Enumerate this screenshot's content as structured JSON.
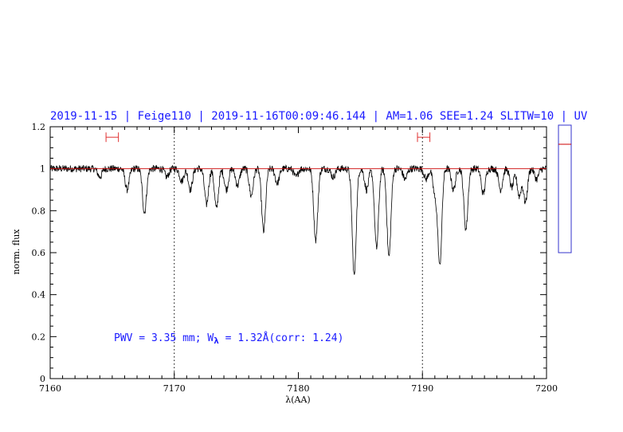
{
  "chart_data": {
    "type": "line",
    "title": "2019-11-15 | Feige110 | 2019-11-16T00:09:46.144 | AM=1.06  SEE=1.24  SLITW=10 | UV",
    "xlabel": "λ(AA)",
    "ylabel": "norm. flux",
    "xlim": [
      7160,
      7200
    ],
    "ylim": [
      0,
      1.2
    ],
    "x_ticks": [
      7160,
      7170,
      7180,
      7190,
      7200
    ],
    "x_tick_labels": [
      "7160",
      "7170",
      "7180",
      "7190",
      "7200"
    ],
    "y_ticks": [
      0,
      0.2,
      0.4,
      0.6,
      0.8,
      1,
      1.2
    ],
    "y_tick_labels": [
      "0",
      "0.2",
      "0.4",
      "0.6",
      "0.8",
      "1",
      "1.2"
    ],
    "continuum_level": 1.0,
    "continuum_color": "#cc0000",
    "spectrum_color": "#000000",
    "reference_lines_x": [
      7170,
      7190
    ],
    "continuum_windows": [
      [
        7164.5,
        7165.5
      ],
      [
        7189.6,
        7190.6
      ]
    ],
    "window_y": 1.15,
    "annotation": {
      "pwv_text": "PWV  =  3.35  mm;  W",
      "subscript": "λ",
      "rest_text": "  =  1.32Å(corr: 1.24)"
    },
    "absorption_lines": [
      {
        "x": 7164.0,
        "depth": 0.04
      },
      {
        "x": 7166.2,
        "depth": 0.1
      },
      {
        "x": 7167.6,
        "depth": 0.21
      },
      {
        "x": 7169.4,
        "depth": 0.04
      },
      {
        "x": 7170.6,
        "depth": 0.06
      },
      {
        "x": 7171.3,
        "depth": 0.1
      },
      {
        "x": 7172.6,
        "depth": 0.17
      },
      {
        "x": 7173.4,
        "depth": 0.19
      },
      {
        "x": 7174.2,
        "depth": 0.1
      },
      {
        "x": 7175.1,
        "depth": 0.08
      },
      {
        "x": 7176.2,
        "depth": 0.13
      },
      {
        "x": 7177.2,
        "depth": 0.3
      },
      {
        "x": 7178.3,
        "depth": 0.07
      },
      {
        "x": 7179.8,
        "depth": 0.04
      },
      {
        "x": 7181.4,
        "depth": 0.34
      },
      {
        "x": 7182.8,
        "depth": 0.04
      },
      {
        "x": 7184.5,
        "depth": 0.51
      },
      {
        "x": 7185.5,
        "depth": 0.1
      },
      {
        "x": 7186.3,
        "depth": 0.38
      },
      {
        "x": 7187.3,
        "depth": 0.42
      },
      {
        "x": 7188.6,
        "depth": 0.05
      },
      {
        "x": 7190.3,
        "depth": 0.05
      },
      {
        "x": 7191.0,
        "depth": 0.12
      },
      {
        "x": 7191.4,
        "depth": 0.46
      },
      {
        "x": 7192.5,
        "depth": 0.1
      },
      {
        "x": 7193.5,
        "depth": 0.29
      },
      {
        "x": 7194.9,
        "depth": 0.12
      },
      {
        "x": 7196.3,
        "depth": 0.1
      },
      {
        "x": 7197.2,
        "depth": 0.09
      },
      {
        "x": 7197.8,
        "depth": 0.13
      },
      {
        "x": 7198.3,
        "depth": 0.16
      },
      {
        "x": 7199.2,
        "depth": 0.05
      }
    ],
    "side_panel": {
      "ylim": [
        0,
        1.2
      ],
      "border_color": "#3333cc",
      "marker_level": 1.02,
      "marker_color": "#cc0000"
    }
  }
}
